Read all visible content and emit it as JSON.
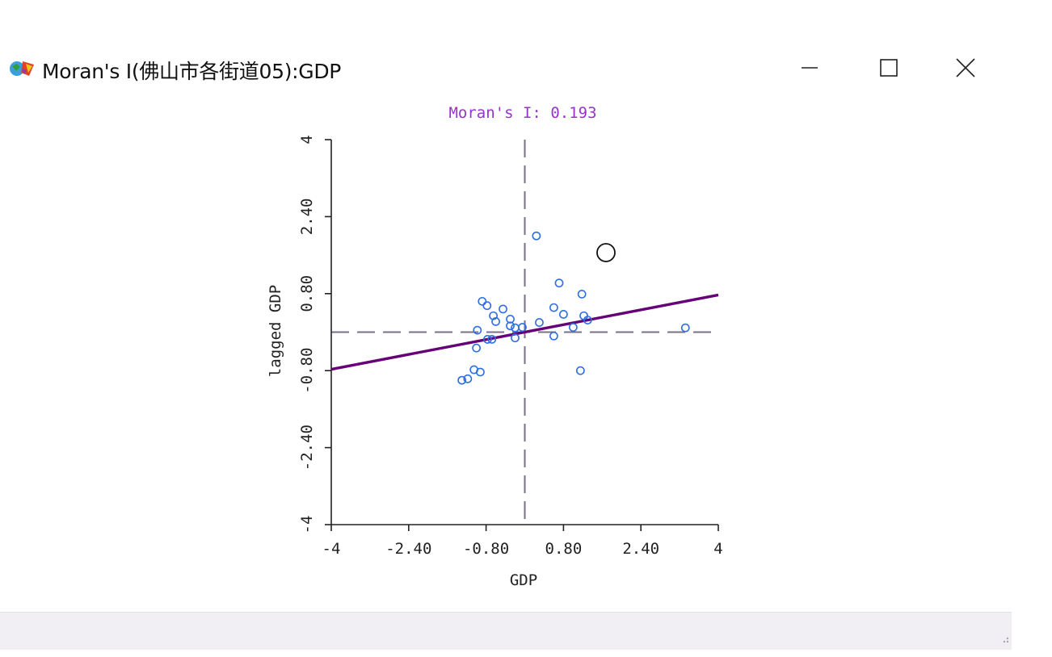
{
  "window": {
    "title": "Moran's I(佛山市各街道05):GDP",
    "controls": {
      "minimize": "minimize-icon",
      "maximize": "maximize-icon",
      "close": "close-icon"
    }
  },
  "chart_data": {
    "type": "scatter",
    "title": "Moran's I: 0.193",
    "xlabel": "GDP",
    "ylabel": "lagged GDP",
    "xlim": [
      -4,
      4
    ],
    "ylim": [
      -4,
      4
    ],
    "xticks": [
      -4,
      -2.4,
      -0.8,
      0.8,
      2.4,
      4
    ],
    "yticks": [
      -4,
      -2.4,
      -0.8,
      0.8,
      2.4,
      4
    ],
    "xtick_labels": [
      "-4",
      "-2.40",
      "-0.80",
      "0.80",
      "2.40",
      "4"
    ],
    "ytick_labels": [
      "-4",
      "-2.40",
      "-0.80",
      "0.80",
      "2.40",
      "4"
    ],
    "reference_lines": {
      "x": 0,
      "y": 0,
      "style": "dashed"
    },
    "regression_slope": 0.193,
    "points": {
      "x": [
        0.24,
        0.71,
        1.18,
        1.22,
        -0.88,
        -0.78,
        -0.45,
        -0.65,
        -0.6,
        -0.3,
        -0.3,
        -0.2,
        -0.05,
        0.3,
        0.6,
        0.8,
        1.0,
        1.3,
        0.6,
        1.15,
        3.32,
        -0.98,
        -0.77,
        -0.68,
        -0.2,
        -1.0,
        -1.05,
        -1.18,
        -1.3,
        -0.92
      ],
      "y": [
        2.0,
        1.02,
        0.79,
        0.34,
        0.64,
        0.55,
        0.48,
        0.34,
        0.22,
        0.27,
        0.13,
        0.09,
        0.1,
        0.2,
        0.51,
        0.37,
        0.1,
        0.25,
        -0.08,
        -0.8,
        0.09,
        0.04,
        -0.15,
        -0.15,
        -0.12,
        -0.33,
        -0.78,
        -0.97,
        -1.0,
        -0.83
      ]
    },
    "colors": {
      "title": "#9933cc",
      "points": "#2f6fe0",
      "regression": "#660077",
      "reference": "#7a7284",
      "axis": "#222222"
    }
  },
  "cursor": {
    "icon": "circle-cursor-icon"
  },
  "statusbar": {
    "grip": "resize-grip-icon"
  }
}
